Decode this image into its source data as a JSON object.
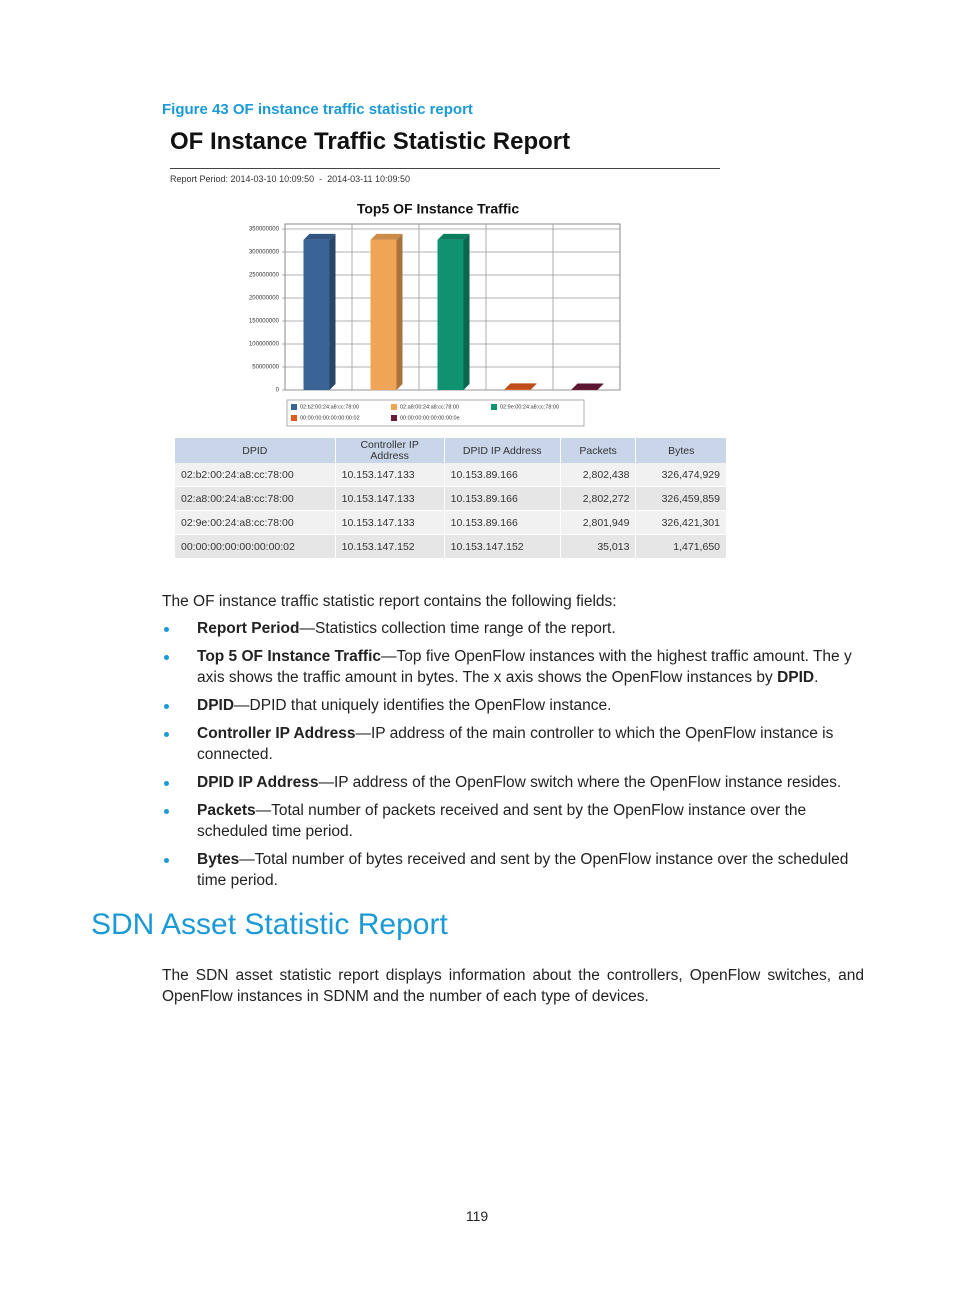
{
  "figure_caption": "Figure 43 OF instance traffic statistic report",
  "report": {
    "title": "OF Instance Traffic Statistic Report",
    "period": "Report Period: 2014-03-10 10:09:50  -  2014-03-11 10:09:50"
  },
  "chart_data": {
    "type": "bar",
    "title": "Top5 OF Instance Traffic",
    "categories": [
      "02:b2:00:24:a8:cc:78:00",
      "02:a8:00:24:a8:cc:78:00",
      "02:9e:00:24:a8:cc:78:00",
      "00:00:00:00:00:00:00:02",
      "00:00:00:00:00:00:00:0e"
    ],
    "values": [
      326474929,
      326459859,
      326421301,
      1471650,
      1000000
    ],
    "colors": [
      "#3a6496",
      "#f0a456",
      "#0e9270",
      "#e05a1e",
      "#6d1a3a"
    ],
    "ylim": [
      0,
      350000000
    ],
    "yticks": [
      0,
      50000000,
      100000000,
      150000000,
      200000000,
      250000000,
      300000000,
      350000000
    ],
    "grid": true
  },
  "table": {
    "header": [
      "DPID",
      "Controller IP Address",
      "DPID  IP Address",
      "Packets",
      "Bytes"
    ],
    "rows": [
      [
        "02:b2:00:24:a8:cc:78:00",
        "10.153.147.133",
        "10.153.89.166",
        "2,802,438",
        "326,474,929"
      ],
      [
        "02:a8:00:24:a8:cc:78:00",
        "10.153.147.133",
        "10.153.89.166",
        "2,802,272",
        "326,459,859"
      ],
      [
        "02:9e:00:24:a8:cc:78:00",
        "10.153.147.133",
        "10.153.89.166",
        "2,801,949",
        "326,421,301"
      ],
      [
        "00:00:00:00:00:00:00:02",
        "10.153.147.152",
        "10.153.147.152",
        "35,013",
        "1,471,650"
      ]
    ]
  },
  "intro": "The OF instance traffic statistic report contains the following fields:",
  "bullets": [
    [
      {
        "bold": "Report Period"
      },
      {
        "text": "—Statistics collection time range of the report."
      }
    ],
    [
      {
        "bold": "Top 5 OF Instance Traffic"
      },
      {
        "text": "—Top five OpenFlow instances with the highest traffic amount. The y axis shows the traffic amount in bytes. The x axis shows the OpenFlow instances by "
      },
      {
        "bold": "DPID"
      },
      {
        "text": "."
      }
    ],
    [
      {
        "bold": "DPID"
      },
      {
        "text": "—DPID that uniquely identifies the OpenFlow instance."
      }
    ],
    [
      {
        "bold": "Controller IP Address"
      },
      {
        "text": "—IP address of the main controller to which the OpenFlow instance is connected."
      }
    ],
    [
      {
        "bold": "DPID IP Address"
      },
      {
        "text": "—IP address of the OpenFlow switch where the OpenFlow instance resides."
      }
    ],
    [
      {
        "bold": "Packets"
      },
      {
        "text": "—Total number of packets received and sent by the OpenFlow instance over the scheduled time period."
      }
    ],
    [
      {
        "bold": "Bytes"
      },
      {
        "text": "—Total number of bytes received and sent by the OpenFlow instance over the scheduled time period."
      }
    ]
  ],
  "section": {
    "title": "SDN Asset Statistic Report",
    "paragraph": "The SDN asset statistic report displays information about the controllers, OpenFlow switches, and OpenFlow instances in SDNM and the number of each type of devices."
  },
  "page_number": "119"
}
